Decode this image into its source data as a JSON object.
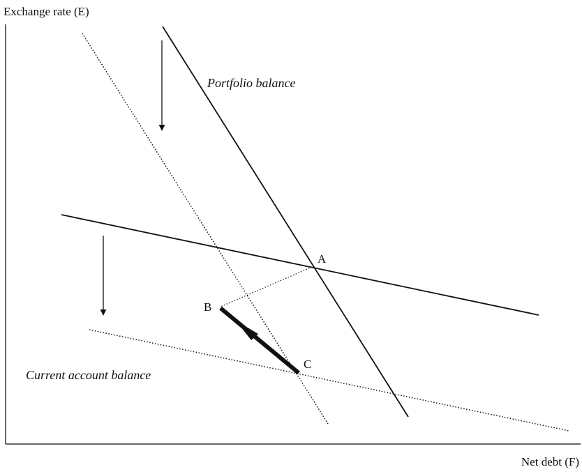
{
  "axes": {
    "y_label": "Exchange rate (E)",
    "x_label": "Net debt (F)"
  },
  "curves": {
    "portfolio": "Portfolio balance",
    "current_account": "Current account balance"
  },
  "points": {
    "a": "A",
    "b": "B",
    "c": "C"
  }
}
